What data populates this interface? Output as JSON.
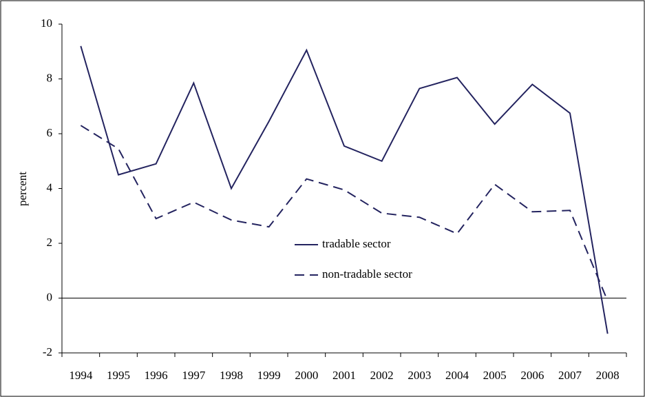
{
  "chart_data": {
    "type": "line",
    "y_label": "percent",
    "categories": [
      "1994",
      "1995",
      "1996",
      "1997",
      "1998",
      "1999",
      "2000",
      "2001",
      "2002",
      "2003",
      "2004",
      "2005",
      "2006",
      "2007",
      "2008"
    ],
    "series": [
      {
        "name": "tradable sector",
        "color": "#23235f",
        "dash": "solid",
        "values": [
          9.2,
          4.5,
          4.9,
          7.85,
          4.0,
          6.45,
          9.05,
          5.55,
          5.0,
          7.65,
          8.05,
          6.35,
          7.8,
          6.75,
          -1.3
        ]
      },
      {
        "name": "non-tradable sector",
        "color": "#23235f",
        "dash": "dashed",
        "values": [
          6.3,
          5.45,
          2.9,
          3.5,
          2.85,
          2.6,
          4.35,
          3.95,
          3.1,
          2.95,
          2.35,
          4.15,
          3.15,
          3.2,
          -0.1
        ]
      }
    ],
    "ylim": [
      -2,
      10
    ],
    "yticks": [
      -2,
      0,
      2,
      4,
      6,
      8,
      10
    ],
    "zero_line": true
  }
}
